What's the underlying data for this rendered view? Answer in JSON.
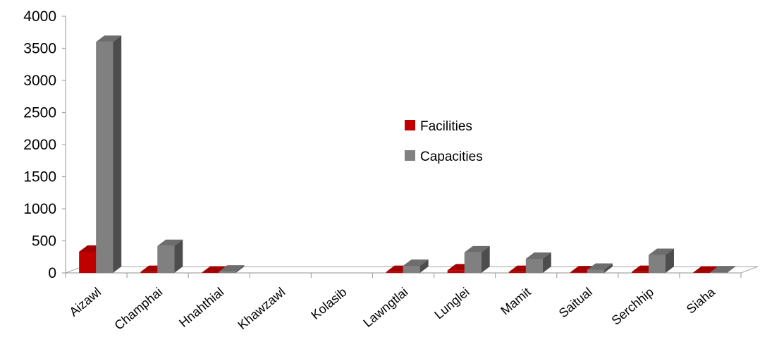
{
  "chart_data": {
    "type": "bar",
    "title": "",
    "xlabel": "",
    "ylabel": "",
    "categories": [
      "Aizawl",
      "Champhai",
      "Hnahthial",
      "Khawzawl",
      "Kolasib",
      "Lawngtlai",
      "Lunglei",
      "Mamit",
      "Saitual",
      "Serchhip",
      "Siaha"
    ],
    "series": [
      {
        "name": "Facilities",
        "color": "#C00000",
        "values": [
          330,
          15,
          5,
          0,
          0,
          15,
          40,
          15,
          10,
          15,
          5
        ]
      },
      {
        "name": "Capacities",
        "color": "#808080",
        "values": [
          3600,
          420,
          20,
          0,
          0,
          110,
          320,
          220,
          50,
          280,
          10
        ]
      }
    ],
    "ylim": [
      0,
      4000
    ],
    "yticks": [
      "0",
      "500",
      "1000",
      "1500",
      "2000",
      "2500",
      "3000",
      "3500",
      "4000"
    ],
    "grid": false,
    "legend_position": "center-right",
    "style": "3d-column"
  }
}
